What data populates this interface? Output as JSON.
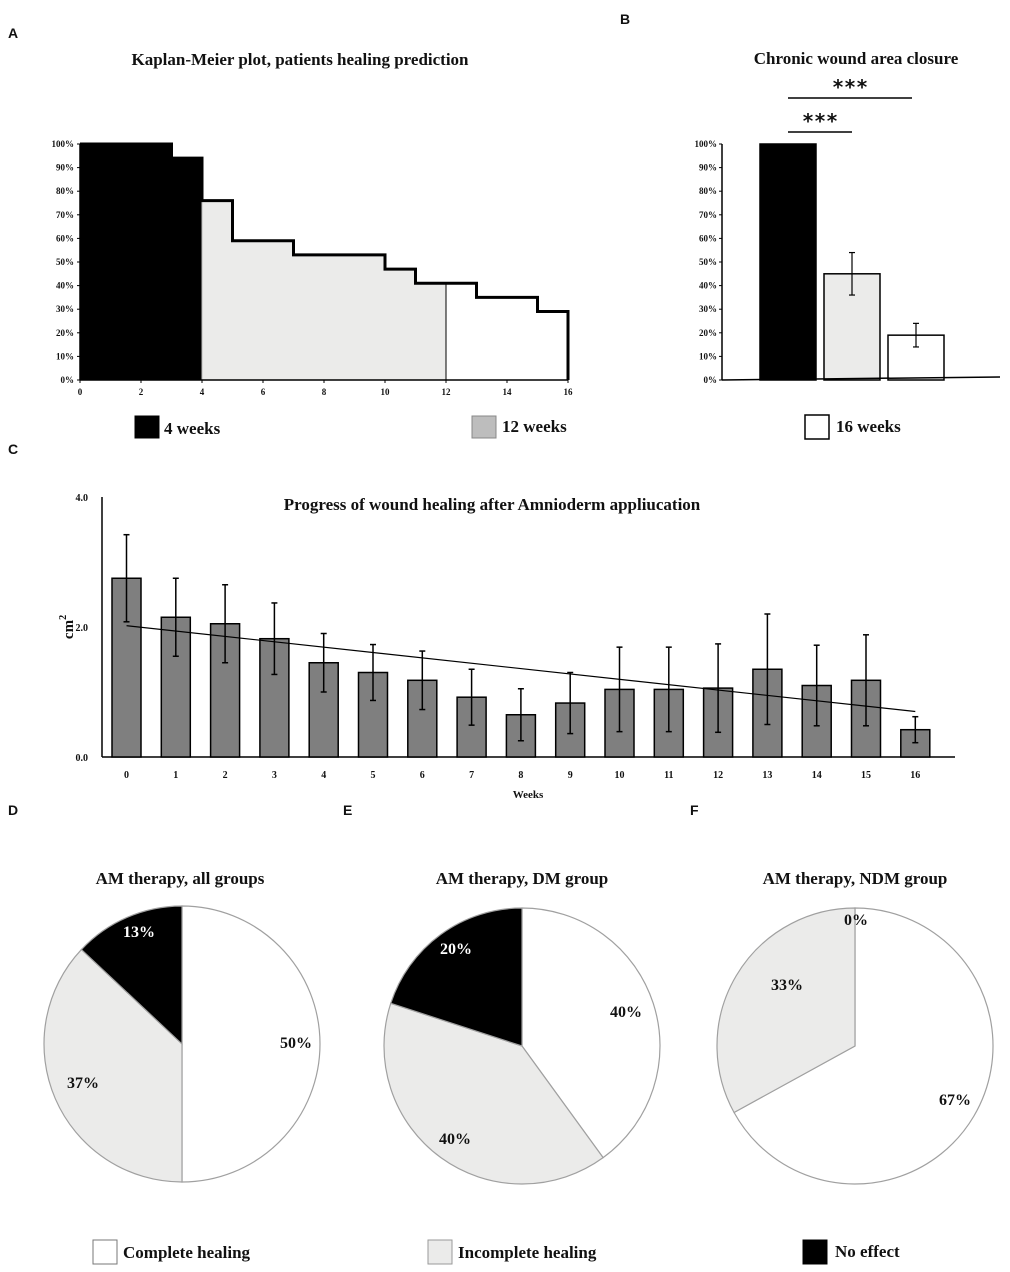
{
  "panels": [
    "A",
    "B",
    "C",
    "D",
    "E",
    "F"
  ],
  "colors": {
    "black": "#000000",
    "gray_fill": "#ebebea",
    "bar_gray": "#7f7f7f",
    "legend_gray": "#bdbdbd",
    "white": "#ffffff"
  },
  "chart_data": [
    {
      "id": "A",
      "type": "step",
      "title": "Kaplan-Meier plot, patients healing prediction",
      "x_ticks": [
        "0",
        "2",
        "4",
        "6",
        "8",
        "10",
        "12",
        "14",
        "16"
      ],
      "xlim": [
        0,
        16
      ],
      "y_ticks": [
        "0%",
        "10%",
        "20%",
        "30%",
        "40%",
        "50%",
        "60%",
        "70%",
        "80%",
        "90%",
        "100%"
      ],
      "ylim": [
        0,
        100
      ],
      "steps": [
        {
          "x": 0,
          "y": 100
        },
        {
          "x": 3,
          "y": 94
        },
        {
          "x": 4,
          "y": 76
        },
        {
          "x": 5,
          "y": 59
        },
        {
          "x": 7,
          "y": 53
        },
        {
          "x": 10,
          "y": 47
        },
        {
          "x": 11,
          "y": 41
        },
        {
          "x": 13,
          "y": 35
        },
        {
          "x": 15,
          "y": 29
        },
        {
          "x": 16,
          "y": 29
        }
      ],
      "fill_regions": [
        {
          "from": 0,
          "to": 4,
          "color": "#000000"
        },
        {
          "from": 4,
          "to": 12,
          "color": "#ebebea"
        },
        {
          "from": 12,
          "to": 16,
          "color": "#ffffff"
        }
      ],
      "legend": [
        "4 weeks",
        "12 weeks"
      ]
    },
    {
      "id": "B",
      "type": "bar",
      "title": "Chronic wound area closure",
      "categories": [
        "4 weeks",
        "12 weeks",
        "16 weeks"
      ],
      "values": [
        100,
        45,
        19
      ],
      "errors": [
        0,
        9,
        5
      ],
      "bar_colors": [
        "#000000",
        "#ebebea",
        "#ffffff"
      ],
      "y_ticks": [
        "0%",
        "10%",
        "20%",
        "30%",
        "40%",
        "50%",
        "60%",
        "70%",
        "80%",
        "90%",
        "100%"
      ],
      "ylim": [
        0,
        100
      ],
      "significance": [
        {
          "from": 0,
          "to": 1,
          "label": "***"
        },
        {
          "from": 0,
          "to": 2,
          "label": "***"
        }
      ],
      "legend": [
        "16 weeks"
      ]
    },
    {
      "id": "C",
      "type": "bar",
      "title": "Progress of wound healing after Amnioderm appliucation",
      "xlabel": "Weeks",
      "ylabel": "cm",
      "ylabel_sup": "2",
      "categories": [
        "0",
        "1",
        "2",
        "3",
        "4",
        "5",
        "6",
        "7",
        "8",
        "9",
        "10",
        "11",
        "12",
        "13",
        "14",
        "15",
        "16"
      ],
      "values": [
        2.75,
        2.15,
        2.05,
        1.82,
        1.45,
        1.3,
        1.18,
        0.92,
        0.65,
        0.83,
        1.04,
        1.04,
        1.06,
        1.35,
        1.1,
        1.18,
        0.42
      ],
      "errors": [
        0.67,
        0.6,
        0.6,
        0.55,
        0.45,
        0.43,
        0.45,
        0.43,
        0.4,
        0.47,
        0.65,
        0.65,
        0.68,
        0.85,
        0.62,
        0.7,
        0.2
      ],
      "trend": {
        "start": 2.02,
        "end": 0.7
      },
      "y_ticks": [
        "0.0",
        "2.0",
        "4.0"
      ],
      "ylim": [
        0,
        4
      ]
    },
    {
      "id": "D",
      "type": "pie",
      "title": "AM therapy, all groups",
      "slices": [
        {
          "label": "Complete healing",
          "value": 50,
          "text": "50%",
          "color": "#ffffff"
        },
        {
          "label": "Incomplete healing",
          "value": 37,
          "text": "37%",
          "color": "#ebebea"
        },
        {
          "label": "No effect",
          "value": 13,
          "text": "13%",
          "color": "#000000"
        }
      ]
    },
    {
      "id": "E",
      "type": "pie",
      "title": "AM therapy, DM group",
      "slices": [
        {
          "label": "Complete healing",
          "value": 40,
          "text": "40%",
          "color": "#ffffff"
        },
        {
          "label": "Incomplete healing",
          "value": 40,
          "text": "40%",
          "color": "#ebebea"
        },
        {
          "label": "No effect",
          "value": 20,
          "text": "20%",
          "color": "#000000"
        }
      ]
    },
    {
      "id": "F",
      "type": "pie",
      "title": "AM therapy, NDM group",
      "slices": [
        {
          "label": "Complete healing",
          "value": 67,
          "text": "67%",
          "color": "#ffffff"
        },
        {
          "label": "Incomplete healing",
          "value": 33,
          "text": "33%",
          "color": "#ebebea"
        },
        {
          "label": "No effect",
          "value": 0,
          "text": "0%",
          "color": "#000000"
        }
      ]
    }
  ],
  "pie_legend": [
    "Complete healing",
    "Incomplete healing",
    "No effect"
  ]
}
